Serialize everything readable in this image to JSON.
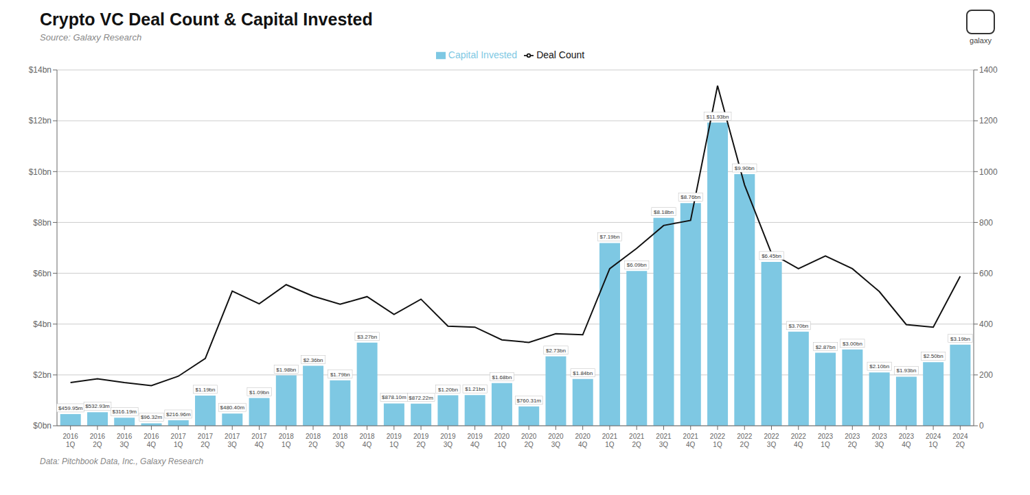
{
  "chart_data": {
    "type": "bar",
    "title": "Crypto VC Deal Count & Capital Invested",
    "subtitle": "Source: Galaxy Research",
    "annotations": [
      "Data: Pitchbook Data, Inc., Galaxy Research",
      "galaxy"
    ],
    "categories": [
      "2016\n1Q",
      "2016\n2Q",
      "2016\n3Q",
      "2016\n4Q",
      "2017\n1Q",
      "2017\n2Q",
      "2017\n3Q",
      "2017\n4Q",
      "2018\n1Q",
      "2018\n2Q",
      "2018\n3Q",
      "2018\n4Q",
      "2019\n1Q",
      "2019\n2Q",
      "2019\n3Q",
      "2019\n4Q",
      "2020\n1Q",
      "2020\n2Q",
      "2020\n3Q",
      "2020\n4Q",
      "2021\n1Q",
      "2021\n2Q",
      "2021\n3Q",
      "2021\n4Q",
      "2022\n1Q",
      "2022\n2Q",
      "2022\n3Q",
      "2022\n4Q",
      "2023\n1Q",
      "2023\n2Q",
      "2023\n3Q",
      "2023\n4Q",
      "2024\n1Q",
      "2024\n2Q"
    ],
    "series": [
      {
        "name": "Capital Invested",
        "type": "bar",
        "color": "#7EC8E3",
        "values": [
          0.45995,
          0.53293,
          0.31619,
          0.09632,
          0.21696,
          1.19,
          0.4804,
          1.09,
          1.98,
          2.36,
          1.79,
          3.27,
          0.8781,
          0.87222,
          1.2,
          1.21,
          1.68,
          0.76031,
          2.73,
          1.84,
          7.19,
          6.09,
          8.18,
          8.76,
          11.93,
          9.9,
          6.45,
          3.7,
          2.87,
          3.0,
          2.1,
          1.93,
          2.5,
          3.19
        ],
        "value_labels": [
          "$459.95m",
          "$532.93m",
          "$316.19m",
          "$96.32m",
          "$216.96m",
          "$1.19bn",
          "$480.40m",
          "$1.09bn",
          "$1.98bn",
          "$2.36bn",
          "$1.79bn",
          "$3.27bn",
          "$878.10m",
          "$872.22m",
          "$1.20bn",
          "$1.21bn",
          "$1.68bn",
          "$760.31m",
          "$2.73bn",
          "$1.84bn",
          "$7.19bn",
          "$6.09bn",
          "$8.18bn",
          "$8.76bn",
          "$11.93bn",
          "$9.90bn",
          "$6.45bn",
          "$3.70bn",
          "$2.87bn",
          "$3.00bn",
          "$2.10bn",
          "$1.93bn",
          "$2.50bn",
          "$3.19bn"
        ]
      },
      {
        "name": "Deal Count",
        "type": "line",
        "color": "#111111",
        "axis": "y2",
        "values": [
          170,
          185,
          170,
          158,
          195,
          265,
          530,
          480,
          555,
          510,
          478,
          508,
          438,
          498,
          392,
          388,
          338,
          328,
          362,
          358,
          618,
          698,
          788,
          808,
          1338,
          948,
          678,
          618,
          668,
          618,
          528,
          398,
          388,
          588
        ]
      }
    ],
    "ylim": [
      0,
      14
    ],
    "yticks": [
      {
        "value": 0,
        "label": "$0bn"
      },
      {
        "value": 2,
        "label": "$2bn"
      },
      {
        "value": 4,
        "label": "$4bn"
      },
      {
        "value": 6,
        "label": "$6bn"
      },
      {
        "value": 8,
        "label": "$8bn"
      },
      {
        "value": 10,
        "label": "$10bn"
      },
      {
        "value": 12,
        "label": "$12bn"
      },
      {
        "value": 14,
        "label": "$14bn"
      }
    ],
    "y2lim": [
      0,
      1400
    ],
    "y2ticks": [
      0,
      200,
      400,
      600,
      800,
      1000,
      1200,
      1400
    ],
    "grid": true,
    "legend": "top",
    "data_labels": true
  }
}
